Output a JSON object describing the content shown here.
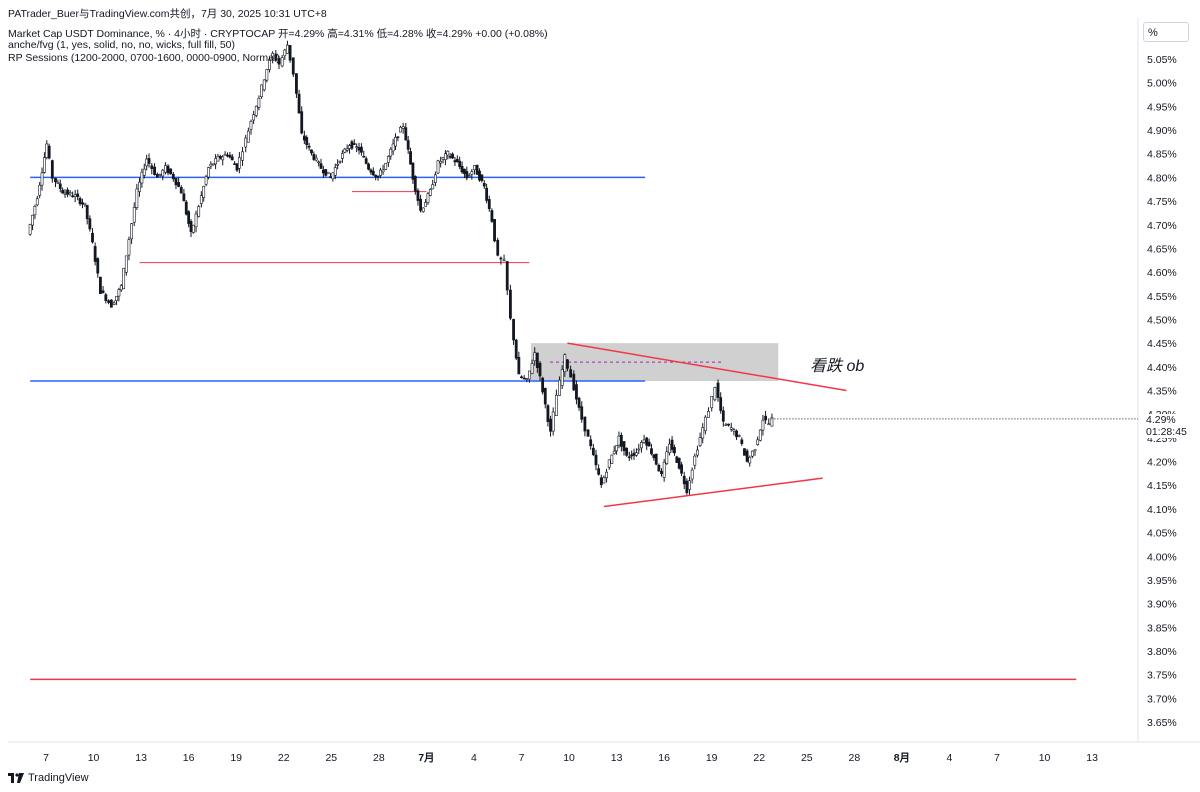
{
  "header": {
    "publisher": "PATrader_Buer与TradingView.com共创，7月 30, 2025 10:31 UTC+8",
    "symbol_line": "Market Cap USDT Dominance, % · 4小时 · CRYPTOCAP  开=4.29%  高=4.31%  低=4.28%  收=4.29%  +0.00 (+0.08%)",
    "indicator1": "anche/fvg (1, yes, solid, no, no, wicks, full fill, 50)",
    "indicator2": "RP Sessions (1200-2000, 0700-1600, 0000-0900, Normal)"
  },
  "axis_unit": "%",
  "last_price": {
    "value": "4.29%",
    "countdown": "01:28:45"
  },
  "annotation": "看跌 ob",
  "branding": "TradingView",
  "colors": {
    "candle_up": "#ffffff",
    "candle_down": "#131722",
    "level_blue": "#2962ff",
    "level_red": "#f23645",
    "ob_fill": "#c8c8c8"
  },
  "chart_data": {
    "type": "candlestick",
    "title": "Market Cap USDT Dominance, %",
    "timeframe": "4h",
    "ylabel": "%",
    "ylim": [
      3.62,
      5.1
    ],
    "y_ticks": [
      "5.05%",
      "5.00%",
      "4.95%",
      "4.90%",
      "4.85%",
      "4.80%",
      "4.75%",
      "4.70%",
      "4.65%",
      "4.60%",
      "4.55%",
      "4.50%",
      "4.45%",
      "4.40%",
      "4.35%",
      "4.30%",
      "4.25%",
      "4.20%",
      "4.15%",
      "4.10%",
      "4.05%",
      "4.00%",
      "3.95%",
      "3.90%",
      "3.85%",
      "3.80%",
      "3.75%",
      "3.70%",
      "3.65%"
    ],
    "x_ticks": [
      "7",
      "10",
      "13",
      "16",
      "19",
      "22",
      "25",
      "28",
      "7月",
      "4",
      "7",
      "10",
      "13",
      "16",
      "19",
      "22",
      "25",
      "28",
      "8月",
      "4",
      "7",
      "10",
      "13"
    ],
    "x_range_days": [
      6.0,
      44.8
    ],
    "price_path": [
      [
        6.0,
        4.68
      ],
      [
        6.6,
        4.76
      ],
      [
        7.2,
        4.87
      ],
      [
        7.6,
        4.8
      ],
      [
        8.2,
        4.77
      ],
      [
        9.0,
        4.76
      ],
      [
        9.6,
        4.74
      ],
      [
        10.1,
        4.66
      ],
      [
        10.6,
        4.56
      ],
      [
        11.3,
        4.53
      ],
      [
        11.9,
        4.57
      ],
      [
        12.4,
        4.67
      ],
      [
        12.9,
        4.77
      ],
      [
        13.5,
        4.84
      ],
      [
        14.2,
        4.8
      ],
      [
        14.7,
        4.82
      ],
      [
        15.2,
        4.8
      ],
      [
        15.7,
        4.77
      ],
      [
        16.3,
        4.68
      ],
      [
        16.8,
        4.74
      ],
      [
        17.4,
        4.82
      ],
      [
        18.0,
        4.84
      ],
      [
        18.6,
        4.85
      ],
      [
        19.2,
        4.82
      ],
      [
        19.6,
        4.86
      ],
      [
        20.1,
        4.92
      ],
      [
        20.6,
        4.97
      ],
      [
        21.1,
        5.03
      ],
      [
        21.5,
        5.06
      ],
      [
        21.9,
        5.04
      ],
      [
        22.4,
        5.08
      ],
      [
        22.8,
        5.02
      ],
      [
        23.3,
        4.89
      ],
      [
        23.9,
        4.85
      ],
      [
        24.5,
        4.82
      ],
      [
        25.1,
        4.8
      ],
      [
        25.7,
        4.84
      ],
      [
        26.3,
        4.87
      ],
      [
        26.9,
        4.86
      ],
      [
        27.5,
        4.82
      ],
      [
        28.1,
        4.8
      ],
      [
        28.6,
        4.83
      ],
      [
        29.2,
        4.88
      ],
      [
        29.7,
        4.91
      ],
      [
        30.3,
        4.8
      ],
      [
        30.8,
        4.73
      ],
      [
        31.4,
        4.77
      ],
      [
        31.9,
        4.83
      ],
      [
        32.5,
        4.85
      ],
      [
        33.1,
        4.83
      ],
      [
        33.7,
        4.8
      ],
      [
        34.2,
        4.82
      ],
      [
        34.8,
        4.78
      ],
      [
        35.3,
        4.71
      ],
      [
        35.7,
        4.63
      ],
      [
        36.1,
        4.62
      ],
      [
        36.5,
        4.5
      ],
      [
        37.0,
        4.38
      ],
      [
        37.5,
        4.37
      ],
      [
        38.0,
        4.43
      ],
      [
        38.5,
        4.35
      ],
      [
        39.0,
        4.26
      ],
      [
        39.4,
        4.34
      ],
      [
        39.9,
        4.42
      ],
      [
        40.3,
        4.38
      ],
      [
        40.8,
        4.31
      ],
      [
        41.2,
        4.27
      ],
      [
        41.7,
        4.21
      ],
      [
        42.2,
        4.15
      ],
      [
        42.7,
        4.2
      ],
      [
        43.3,
        4.25
      ],
      [
        43.8,
        4.21
      ],
      [
        44.4,
        4.22
      ]
    ],
    "price_path_b": [
      [
        44.4,
        4.22
      ],
      [
        44.9,
        4.25
      ],
      [
        45.5,
        4.21
      ],
      [
        46.0,
        4.17
      ],
      [
        46.5,
        4.24
      ],
      [
        47.1,
        4.19
      ],
      [
        47.6,
        4.14
      ],
      [
        48.1,
        4.21
      ],
      [
        48.6,
        4.27
      ],
      [
        49.0,
        4.31
      ],
      [
        49.4,
        4.36
      ],
      [
        49.9,
        4.28
      ],
      [
        50.4,
        4.27
      ],
      [
        50.9,
        4.25
      ],
      [
        51.4,
        4.2
      ],
      [
        51.9,
        4.23
      ],
      [
        52.4,
        4.29
      ],
      [
        52.8,
        4.28
      ],
      [
        53.0,
        4.29
      ]
    ],
    "levels": [
      {
        "name": "blue level",
        "price": 4.8,
        "x_start": 6.0,
        "x_end": 44.8,
        "color": "#2962ff"
      },
      {
        "name": "blue level",
        "price": 4.37,
        "x_start": 6.0,
        "x_end": 44.8,
        "color": "#2962ff"
      },
      {
        "name": "red level",
        "price": 3.74,
        "x_start": 6.0,
        "x_end": 72.0,
        "color": "#f23645"
      },
      {
        "name": "red short",
        "price": 4.62,
        "x_start": 12.9,
        "x_end": 37.5,
        "color": "#f23645"
      },
      {
        "name": "red short",
        "price": 4.77,
        "x_start": 26.3,
        "x_end": 31.0,
        "color": "#f23645"
      }
    ],
    "order_block": {
      "label": "看跌 ob",
      "top": 4.45,
      "bottom": 4.37,
      "x_start": 37.6,
      "x_end": 53.2,
      "mid": 4.41
    },
    "trendlines": [
      {
        "from": [
          39.9,
          4.45
        ],
        "to": [
          57.5,
          4.35
        ],
        "color": "#f23645"
      },
      {
        "from": [
          42.2,
          4.105
        ],
        "to": [
          56.0,
          4.165
        ],
        "color": "#f23645"
      }
    ],
    "last_close": 4.29,
    "grid": false,
    "legend": "none"
  }
}
